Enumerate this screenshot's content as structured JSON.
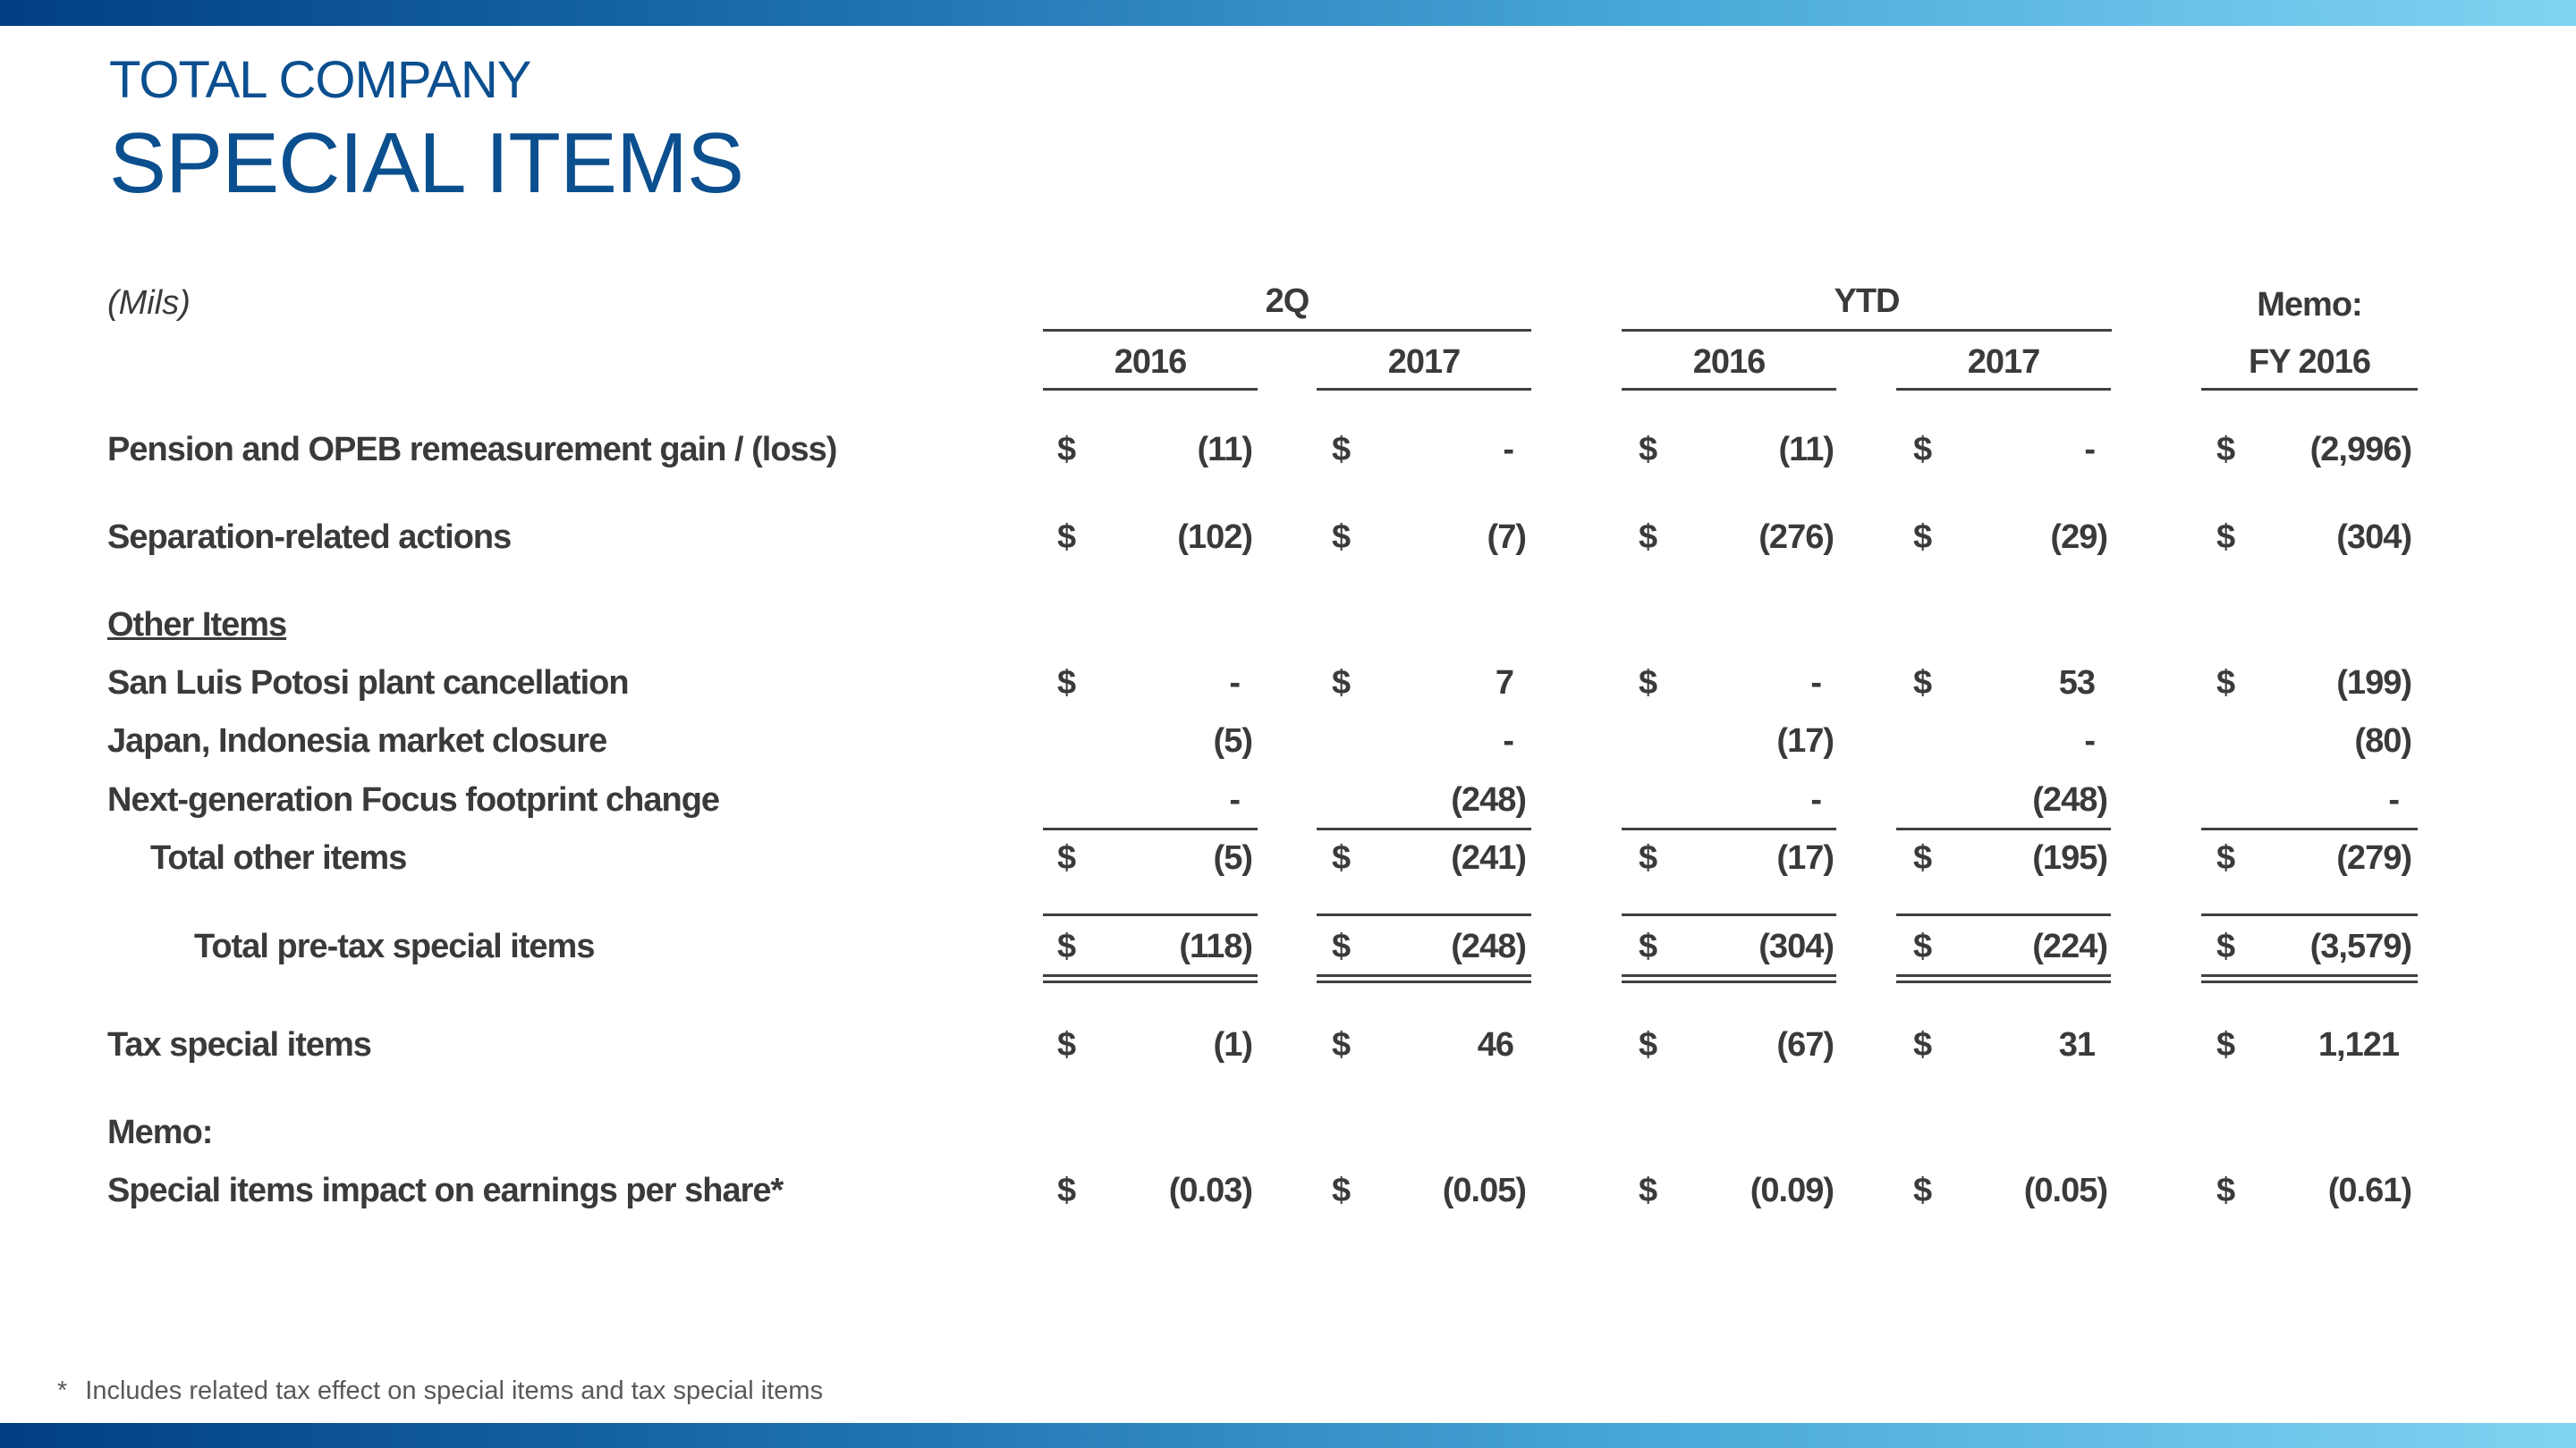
{
  "header": {
    "supertitle": "TOTAL COMPANY",
    "title": "SPECIAL ITEMS"
  },
  "table": {
    "units": "(Mils)",
    "groups": [
      {
        "label": "2Q"
      },
      {
        "label": "YTD"
      },
      {
        "label": "Memo:"
      }
    ],
    "columns": [
      "2016",
      "2017",
      "2016",
      "2017",
      "FY 2016"
    ],
    "rows": [
      {
        "label": "Pension and OPEB remeasurement gain / (loss)",
        "values": [
          "(11)",
          "-",
          "(11)",
          "-",
          "(2,996)"
        ],
        "dollar": true
      },
      {
        "label": "Separation-related actions",
        "values": [
          "(102)",
          "(7)",
          "(276)",
          "(29)",
          "(304)"
        ],
        "dollar": true
      },
      {
        "label": "Other Items",
        "values": [
          "",
          "",
          "",
          "",
          ""
        ],
        "dollar": false
      },
      {
        "label": "San Luis Potosi plant cancellation",
        "values": [
          "-",
          "7",
          "-",
          "53",
          "(199)"
        ],
        "dollar": true
      },
      {
        "label": "Japan, Indonesia market closure",
        "values": [
          "(5)",
          "-",
          "(17)",
          "-",
          "(80)"
        ],
        "dollar": false
      },
      {
        "label": "Next-generation Focus footprint change",
        "values": [
          "-",
          "(248)",
          "-",
          "(248)",
          "-"
        ],
        "dollar": false
      },
      {
        "label": "Total other items",
        "values": [
          "(5)",
          "(241)",
          "(17)",
          "(195)",
          "(279)"
        ],
        "dollar": true
      },
      {
        "label": "Total pre-tax special items",
        "values": [
          "(118)",
          "(248)",
          "(304)",
          "(224)",
          "(3,579)"
        ],
        "dollar": true
      },
      {
        "label": "Tax special items",
        "values": [
          "(1)",
          "46",
          "(67)",
          "31",
          "1,121"
        ],
        "dollar": true
      },
      {
        "label": "Memo:",
        "values": [
          "",
          "",
          "",
          "",
          ""
        ],
        "dollar": false
      },
      {
        "label": "Special items impact on earnings per share*",
        "values": [
          "(0.03)",
          "(0.05)",
          "(0.09)",
          "(0.05)",
          "(0.61)"
        ],
        "dollar": true
      }
    ],
    "currency_symbol": "$"
  },
  "footnote": {
    "marker": "*",
    "text": "Includes related tax effect on special items and tax special items"
  }
}
